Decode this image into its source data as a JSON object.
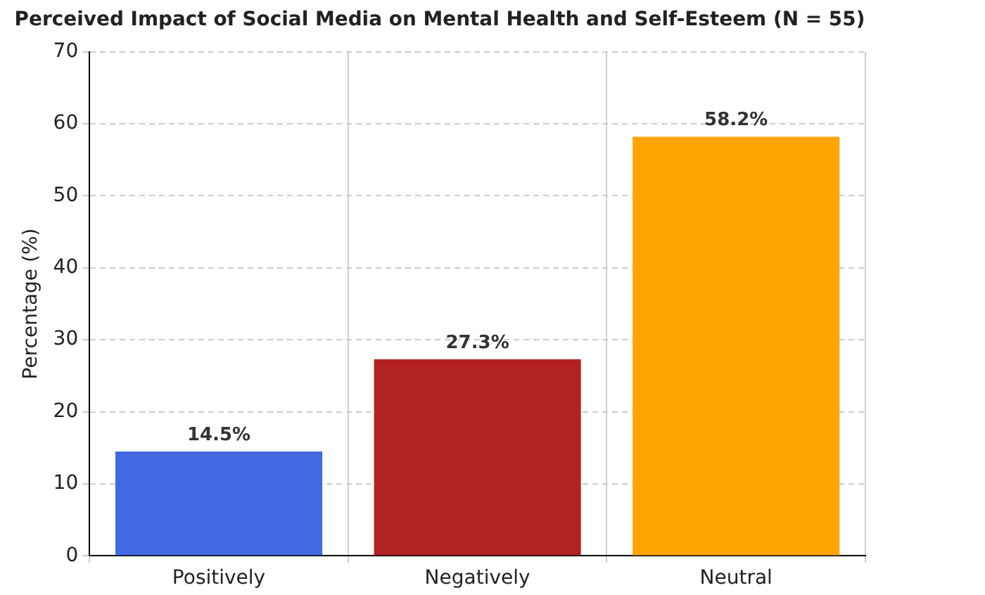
{
  "chart_data": {
    "type": "bar",
    "title": "Perceived Impact of Social Media on Mental Health and Self-Esteem (N = 55)",
    "ylabel": "Percentage (%)",
    "categories": [
      "Positively",
      "Negatively",
      "Neutral"
    ],
    "values": [
      14.5,
      27.3,
      58.2
    ],
    "colors": [
      "#4169e1",
      "#b22222",
      "#ffa500"
    ],
    "value_labels": [
      "14.5%",
      "27.3%",
      "58.2%"
    ],
    "ylim": [
      0,
      70
    ],
    "yticks": [
      0,
      10,
      20,
      30,
      40,
      50,
      60,
      70
    ],
    "grid": true,
    "legend": false
  }
}
